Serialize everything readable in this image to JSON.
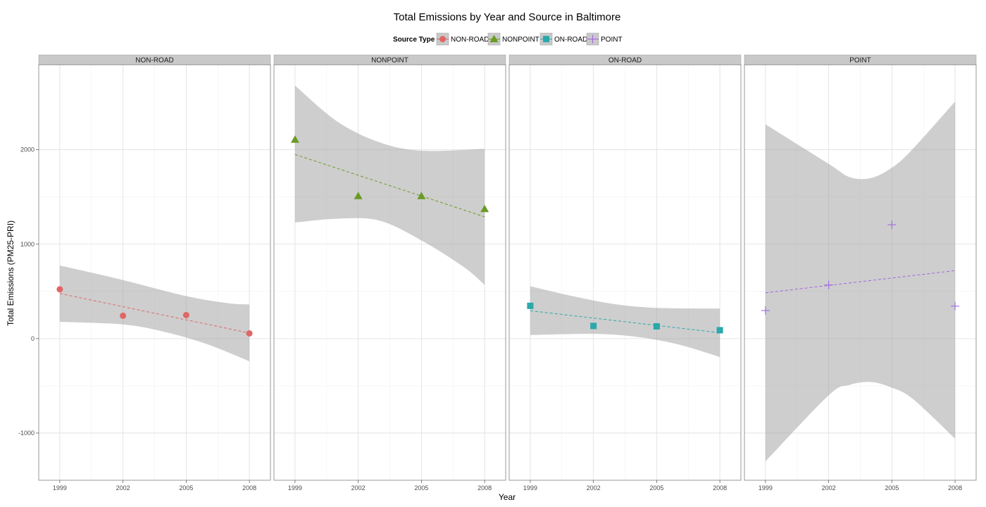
{
  "chart_data": {
    "type": "scatter",
    "title": "Total Emissions by Year and Source in Baltimore",
    "xlabel": "Year",
    "ylabel": "Total Emissions (PM25-PRI)",
    "x_ticks": [
      1999,
      2002,
      2005,
      2008
    ],
    "y_ticks": [
      -1000,
      0,
      1000,
      2000
    ],
    "xlim": [
      1998,
      2009
    ],
    "ylim": [
      -1500,
      2900
    ],
    "grid": true,
    "legend": {
      "title": "Source Type",
      "placement": "top",
      "entries": [
        "NON-ROAD",
        "NONPOINT",
        "ON-ROAD",
        "POINT"
      ]
    },
    "series": [
      {
        "name": "NON-ROAD",
        "color": "#e06666",
        "marker": "circle",
        "x": [
          1999,
          2002,
          2005,
          2008
        ],
        "y": [
          522,
          242,
          249,
          55
        ],
        "trend": [
          [
            1999,
            478
          ],
          [
            2008,
            59
          ]
        ],
        "band_upper": [
          [
            1999,
            775
          ],
          [
            2002,
            620
          ],
          [
            2005,
            450
          ],
          [
            2007,
            375
          ],
          [
            2008,
            362
          ]
        ],
        "band_lower": [
          [
            1999,
            177
          ],
          [
            2002,
            150
          ],
          [
            2004,
            70
          ],
          [
            2006,
            -60
          ],
          [
            2008,
            -240
          ]
        ]
      },
      {
        "name": "NONPOINT",
        "color": "#6b9a24",
        "marker": "triangle",
        "x": [
          1999,
          2002,
          2005,
          2008
        ],
        "y": [
          2108,
          1510,
          1510,
          1373
        ],
        "trend": [
          [
            1999,
            1950
          ],
          [
            2008,
            1290
          ]
        ],
        "band_upper": [
          [
            1999,
            2680
          ],
          [
            2001,
            2300
          ],
          [
            2003,
            2080
          ],
          [
            2005,
            1990
          ],
          [
            2008,
            2010
          ]
        ],
        "band_lower": [
          [
            1999,
            1230
          ],
          [
            2001,
            1270
          ],
          [
            2003,
            1250
          ],
          [
            2005,
            1040
          ],
          [
            2007,
            760
          ],
          [
            2008,
            570
          ]
        ]
      },
      {
        "name": "ON-ROAD",
        "color": "#2aa8ab",
        "marker": "square",
        "x": [
          1999,
          2002,
          2005,
          2008
        ],
        "y": [
          347,
          134,
          130,
          89
        ],
        "trend": [
          [
            1999,
            295
          ],
          [
            2008,
            62
          ]
        ],
        "band_upper": [
          [
            1999,
            555
          ],
          [
            2001,
            450
          ],
          [
            2003,
            365
          ],
          [
            2005,
            325
          ],
          [
            2008,
            318
          ]
        ],
        "band_lower": [
          [
            1999,
            38
          ],
          [
            2002,
            50
          ],
          [
            2004,
            20
          ],
          [
            2006,
            -60
          ],
          [
            2008,
            -195
          ]
        ]
      },
      {
        "name": "POINT",
        "color": "#a066e0",
        "marker": "plus",
        "x": [
          1999,
          2002,
          2005,
          2008
        ],
        "y": [
          297,
          568,
          1206,
          344
        ],
        "trend": [
          [
            1999,
            485
          ],
          [
            2008,
            720
          ]
        ],
        "band_upper": [
          [
            1999,
            2270
          ],
          [
            2002,
            1850
          ],
          [
            2003,
            1710
          ],
          [
            2004,
            1700
          ],
          [
            2005,
            1810
          ],
          [
            2006,
            2010
          ],
          [
            2008,
            2510
          ]
        ],
        "band_lower": [
          [
            1999,
            -1300
          ],
          [
            2002,
            -600
          ],
          [
            2003,
            -490
          ],
          [
            2004,
            -460
          ],
          [
            2005,
            -520
          ],
          [
            2006,
            -640
          ],
          [
            2008,
            -1060
          ]
        ]
      }
    ]
  }
}
